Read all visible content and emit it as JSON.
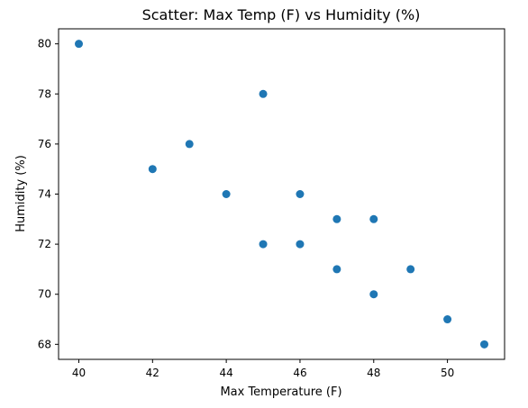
{
  "chart_data": {
    "type": "scatter",
    "title": "Scatter: Max Temp (F) vs Humidity (%)",
    "xlabel": "Max Temperature (F)",
    "ylabel": "Humidity (%)",
    "xlim": [
      39.45,
      51.55
    ],
    "ylim": [
      67.4,
      80.6
    ],
    "xticks": [
      40,
      42,
      44,
      46,
      48,
      50
    ],
    "yticks": [
      68,
      70,
      72,
      74,
      76,
      78,
      80
    ],
    "grid": false,
    "marker_color": "#1f77b4",
    "points": [
      {
        "x": 40,
        "y": 80
      },
      {
        "x": 45,
        "y": 78
      },
      {
        "x": 43,
        "y": 76
      },
      {
        "x": 42,
        "y": 75
      },
      {
        "x": 44,
        "y": 74
      },
      {
        "x": 46,
        "y": 74
      },
      {
        "x": 47,
        "y": 73
      },
      {
        "x": 48,
        "y": 73
      },
      {
        "x": 45,
        "y": 72
      },
      {
        "x": 46,
        "y": 72
      },
      {
        "x": 47,
        "y": 71
      },
      {
        "x": 49,
        "y": 71
      },
      {
        "x": 48,
        "y": 70
      },
      {
        "x": 50,
        "y": 69
      },
      {
        "x": 51,
        "y": 68
      }
    ]
  }
}
